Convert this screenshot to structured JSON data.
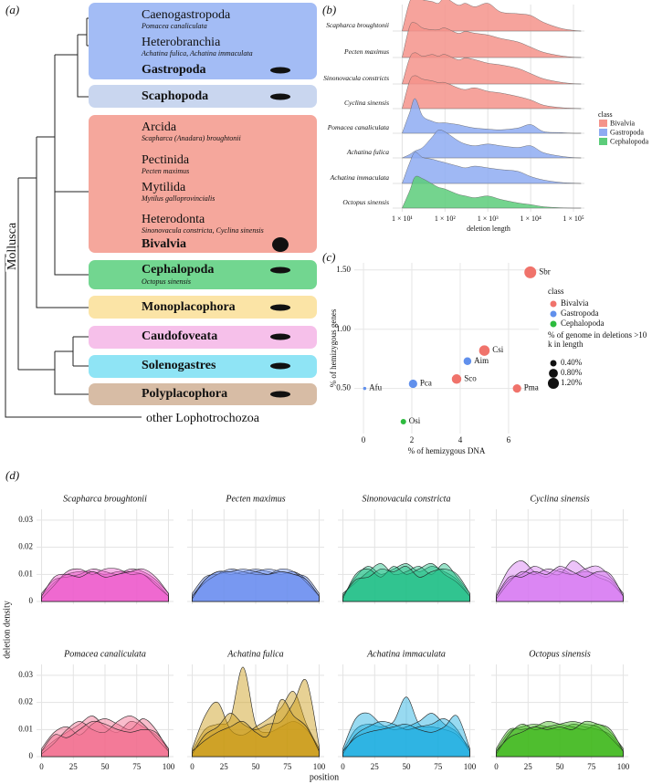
{
  "chart_data": [
    {
      "type": "tree",
      "label": "(a)",
      "root": "Mollusca",
      "outgroup": "other Lophotrochozoa",
      "groups": [
        {
          "name": "Gastropoda",
          "color": "#a3bcf5",
          "members": [
            {
              "name": "Caenogastropoda",
              "species": "Pomacea canaliculata"
            },
            {
              "name": "Heterobranchia",
              "species": "Achatina fulica, Achatina immaculata"
            }
          ]
        },
        {
          "name": "Scaphopoda",
          "color": "#c9d6ef"
        },
        {
          "name": "Bivalvia",
          "color": "#f5a79c",
          "members": [
            {
              "name": "Arcida",
              "species": "Scapharca (Anadara) broughtonii"
            },
            {
              "name": "Pectinida",
              "species": "Pecten maximus"
            },
            {
              "name": "Mytilida",
              "species": "Mytilus galloprovincialis"
            },
            {
              "name": "Heterodonta",
              "species": "Sinonovacula constricta, Cyclina sinensis"
            }
          ]
        },
        {
          "name": "Cephalopoda",
          "color": "#72d690",
          "species": "Octopus sinensis"
        },
        {
          "name": "Monoplacophora",
          "color": "#fbe4a6"
        },
        {
          "name": "Caudofoveata",
          "color": "#f6c0ea"
        },
        {
          "name": "Solenogastres",
          "color": "#8fe4f5"
        },
        {
          "name": "Polyplacophora",
          "color": "#d7bca5"
        }
      ]
    },
    {
      "type": "ridgeline",
      "label": "(b)",
      "x_label": "deletion length",
      "xscale": "log",
      "x": [
        10,
        15,
        20,
        30,
        50,
        70,
        100,
        200,
        300,
        500,
        1000,
        2000,
        5000,
        10000,
        20000,
        50000,
        100000,
        150000
      ],
      "xlim": [
        6,
        180000
      ],
      "xticks": [
        {
          "value": 10,
          "label": "1 × 10¹"
        },
        {
          "value": 100,
          "label": "1 × 10²"
        },
        {
          "value": 1000,
          "label": "1 × 10³"
        },
        {
          "value": 10000,
          "label": "1 × 10⁴"
        },
        {
          "value": 100000,
          "label": "1 × 10⁵"
        }
      ],
      "grid": true,
      "series": [
        {
          "name": "Scapharca broughtonii",
          "color": "#f4938b",
          "values": [
            0,
            0.85,
            1.0,
            0.9,
            0.85,
            0.8,
            0.95,
            0.75,
            0.8,
            0.7,
            0.8,
            0.55,
            0.5,
            0.45,
            0.25,
            0.08,
            0.02,
            0
          ]
        },
        {
          "name": "Pecten maximus",
          "color": "#f4938b",
          "values": [
            0,
            0.9,
            1.0,
            0.85,
            0.8,
            0.8,
            0.85,
            0.7,
            0.75,
            0.7,
            0.65,
            0.55,
            0.45,
            0.3,
            0.15,
            0.05,
            0.01,
            0
          ]
        },
        {
          "name": "Sinonovacula constricts",
          "color": "#f4938b",
          "values": [
            0,
            0.75,
            0.9,
            0.8,
            0.85,
            0.8,
            0.85,
            0.7,
            0.75,
            0.7,
            0.6,
            0.55,
            0.45,
            0.3,
            0.15,
            0.05,
            0.01,
            0
          ]
        },
        {
          "name": "Cyclina sinensis",
          "color": "#f4938b",
          "values": [
            0,
            0.8,
            0.95,
            0.85,
            0.8,
            0.75,
            0.75,
            0.6,
            0.55,
            0.6,
            0.5,
            0.45,
            0.35,
            0.25,
            0.1,
            0.03,
            0.01,
            0
          ]
        },
        {
          "name": "Pomacea canaliculata",
          "color": "#8eabf2",
          "values": [
            0,
            0.6,
            1.0,
            0.5,
            0.35,
            0.3,
            0.3,
            0.25,
            0.2,
            0.15,
            0.12,
            0.1,
            0.15,
            0.25,
            0.05,
            0.02,
            0,
            0
          ]
        },
        {
          "name": "Achatina fulica",
          "color": "#8eabf2",
          "values": [
            0,
            0.1,
            0.2,
            0.3,
            0.6,
            0.8,
            0.75,
            0.5,
            0.4,
            0.35,
            0.4,
            0.35,
            0.3,
            0.35,
            0.15,
            0.05,
            0.01,
            0
          ]
        },
        {
          "name": "Achatina immaculata",
          "color": "#8eabf2",
          "values": [
            0,
            0.6,
            0.9,
            0.75,
            0.7,
            0.65,
            0.6,
            0.5,
            0.45,
            0.5,
            0.45,
            0.4,
            0.35,
            0.2,
            0.1,
            0.03,
            0.01,
            0
          ]
        },
        {
          "name": "Octopus sinensis",
          "color": "#5ccc7a",
          "values": [
            0,
            0.5,
            0.9,
            0.85,
            0.7,
            0.6,
            0.55,
            0.4,
            0.35,
            0.3,
            0.35,
            0.25,
            0.15,
            0.1,
            0.04,
            0.01,
            0,
            0
          ]
        }
      ],
      "legend": {
        "title": "class",
        "items": [
          {
            "name": "Bivalvia",
            "color": "#f4938b"
          },
          {
            "name": "Gastropoda",
            "color": "#8eabf2"
          },
          {
            "name": "Cephalopoda",
            "color": "#5ccc7a"
          }
        ]
      }
    },
    {
      "type": "scatter",
      "label": "(c)",
      "x_label": "% of hemizygous DNA",
      "y_label": "% of hemizygous genes",
      "xlim": [
        -0.38,
        7.25
      ],
      "ylim": [
        0.12,
        1.56
      ],
      "xticks": [
        0,
        2,
        4,
        6
      ],
      "yticks": [
        {
          "value": 0.5,
          "label": "0.50"
        },
        {
          "value": 1.0,
          "label": "1.00"
        },
        {
          "value": 1.5,
          "label": "1.50"
        }
      ],
      "grid": true,
      "legend_title": "class",
      "series": [
        {
          "name": "Bivalvia",
          "color": "#f0736b",
          "labels": [
            "Sbr",
            "Csi",
            "Sco",
            "Pma"
          ],
          "x": [
            6.9,
            5.0,
            3.85,
            6.35
          ],
          "values": [
            1.48,
            0.82,
            0.58,
            0.5
          ],
          "sizes": [
            1.4,
            1.1,
            0.9,
            0.7
          ]
        },
        {
          "name": "Gastropoda",
          "color": "#6190ec",
          "labels": [
            "Aim",
            "Pca",
            "Afu"
          ],
          "x": [
            4.3,
            2.05,
            0.05
          ],
          "values": [
            0.73,
            0.54,
            0.5
          ],
          "sizes": [
            0.6,
            0.7,
            0.1
          ]
        },
        {
          "name": "Cephalopoda",
          "color": "#2dbb3e",
          "labels": [
            "Osi"
          ],
          "x": [
            1.65
          ],
          "values": [
            0.22
          ],
          "sizes": [
            0.3
          ]
        }
      ],
      "size_legend": {
        "title": "% of genome in deletions >10 k in length",
        "items": [
          {
            "value": 0.4,
            "label": "0.40%"
          },
          {
            "value": 0.8,
            "label": "0.80%"
          },
          {
            "value": 1.2,
            "label": "1.20%"
          }
        ]
      }
    },
    {
      "type": "density",
      "label": "(d)",
      "x_label": "position",
      "y_label": "deletion density",
      "x": [
        0,
        10,
        20,
        30,
        40,
        50,
        60,
        70,
        80,
        90,
        100
      ],
      "xlim": [
        -4,
        104
      ],
      "ylim": [
        -0.001,
        0.034
      ],
      "xticks": [
        0,
        25,
        50,
        75,
        100
      ],
      "yticks": [
        0,
        0.01,
        0.02,
        0.03
      ],
      "grid": true,
      "panels": [
        {
          "title": "Scapharca broughtonii",
          "color": "#ee5ccb",
          "curves": [
            [
              0.002,
              0.007,
              0.01,
              0.011,
              0.011,
              0.01,
              0.011,
              0.011,
              0.01,
              0.007,
              0.002
            ],
            [
              0.003,
              0.008,
              0.009,
              0.01,
              0.012,
              0.011,
              0.01,
              0.012,
              0.011,
              0.008,
              0.003
            ],
            [
              0.001,
              0.006,
              0.011,
              0.012,
              0.01,
              0.012,
              0.012,
              0.01,
              0.01,
              0.006,
              0.002
            ],
            [
              0.002,
              0.009,
              0.01,
              0.009,
              0.011,
              0.009,
              0.01,
              0.011,
              0.012,
              0.009,
              0.003
            ]
          ]
        },
        {
          "title": "Pecten maximus",
          "color": "#6b8ff0",
          "curves": [
            [
              0.002,
              0.008,
              0.011,
              0.01,
              0.011,
              0.012,
              0.011,
              0.01,
              0.011,
              0.008,
              0.002
            ],
            [
              0.003,
              0.009,
              0.01,
              0.011,
              0.01,
              0.011,
              0.012,
              0.011,
              0.01,
              0.009,
              0.003
            ],
            [
              0.002,
              0.007,
              0.01,
              0.012,
              0.011,
              0.01,
              0.01,
              0.012,
              0.011,
              0.007,
              0.002
            ],
            [
              0.001,
              0.008,
              0.011,
              0.011,
              0.012,
              0.011,
              0.01,
              0.011,
              0.01,
              0.008,
              0.002
            ]
          ]
        },
        {
          "title": "Sinonovacula constricta",
          "color": "#1dbf86",
          "curves": [
            [
              0.002,
              0.009,
              0.013,
              0.01,
              0.012,
              0.014,
              0.011,
              0.013,
              0.011,
              0.008,
              0.002
            ],
            [
              0.003,
              0.007,
              0.011,
              0.014,
              0.01,
              0.011,
              0.013,
              0.01,
              0.014,
              0.009,
              0.003
            ],
            [
              0.001,
              0.01,
              0.012,
              0.009,
              0.013,
              0.01,
              0.012,
              0.014,
              0.01,
              0.007,
              0.002
            ],
            [
              0.002,
              0.008,
              0.009,
              0.012,
              0.011,
              0.013,
              0.009,
              0.011,
              0.012,
              0.01,
              0.003
            ]
          ]
        },
        {
          "title": "Cyclina sinensis",
          "color": "#d77bf2",
          "curves": [
            [
              0.003,
              0.012,
              0.015,
              0.011,
              0.009,
              0.012,
              0.01,
              0.011,
              0.01,
              0.008,
              0.002
            ],
            [
              0.002,
              0.008,
              0.01,
              0.013,
              0.011,
              0.01,
              0.015,
              0.012,
              0.009,
              0.007,
              0.002
            ],
            [
              0.001,
              0.007,
              0.011,
              0.01,
              0.012,
              0.011,
              0.01,
              0.012,
              0.013,
              0.009,
              0.003
            ],
            [
              0.002,
              0.009,
              0.009,
              0.011,
              0.01,
              0.013,
              0.011,
              0.009,
              0.011,
              0.01,
              0.002
            ]
          ]
        },
        {
          "title": "Pomacea canaliculata",
          "color": "#f26d8d",
          "curves": [
            [
              0.002,
              0.006,
              0.009,
              0.012,
              0.015,
              0.011,
              0.009,
              0.013,
              0.011,
              0.008,
              0.003
            ],
            [
              0.003,
              0.009,
              0.011,
              0.008,
              0.012,
              0.014,
              0.012,
              0.01,
              0.014,
              0.01,
              0.002
            ],
            [
              0.001,
              0.005,
              0.01,
              0.013,
              0.01,
              0.009,
              0.013,
              0.015,
              0.012,
              0.007,
              0.002
            ],
            [
              0.002,
              0.008,
              0.007,
              0.01,
              0.013,
              0.012,
              0.01,
              0.009,
              0.01,
              0.009,
              0.003
            ]
          ]
        },
        {
          "title": "Achatina fulica",
          "color": "#c99a12",
          "curves": [
            [
              0.002,
              0.01,
              0.012,
              0.014,
              0.033,
              0.012,
              0.009,
              0.011,
              0.013,
              0.01,
              0.003
            ],
            [
              0.003,
              0.015,
              0.02,
              0.01,
              0.008,
              0.011,
              0.014,
              0.018,
              0.024,
              0.012,
              0.003
            ],
            [
              0.001,
              0.008,
              0.011,
              0.016,
              0.012,
              0.01,
              0.012,
              0.013,
              0.02,
              0.028,
              0.004
            ],
            [
              0.002,
              0.006,
              0.009,
              0.011,
              0.013,
              0.009,
              0.008,
              0.021,
              0.015,
              0.011,
              0.002
            ]
          ]
        },
        {
          "title": "Achatina immaculata",
          "color": "#1aaee0",
          "curves": [
            [
              0.002,
              0.01,
              0.012,
              0.011,
              0.013,
              0.022,
              0.012,
              0.011,
              0.01,
              0.008,
              0.002
            ],
            [
              0.003,
              0.014,
              0.016,
              0.012,
              0.01,
              0.011,
              0.013,
              0.016,
              0.012,
              0.009,
              0.003
            ],
            [
              0.001,
              0.008,
              0.011,
              0.013,
              0.012,
              0.01,
              0.011,
              0.012,
              0.014,
              0.01,
              0.002
            ],
            [
              0.002,
              0.007,
              0.009,
              0.01,
              0.011,
              0.012,
              0.01,
              0.009,
              0.011,
              0.015,
              0.003
            ]
          ]
        },
        {
          "title": "Octopus sinensis",
          "color": "#3db81a",
          "curves": [
            [
              0.002,
              0.009,
              0.011,
              0.012,
              0.011,
              0.01,
              0.012,
              0.011,
              0.01,
              0.008,
              0.002
            ],
            [
              0.003,
              0.01,
              0.01,
              0.011,
              0.013,
              0.012,
              0.011,
              0.01,
              0.012,
              0.009,
              0.003
            ],
            [
              0.001,
              0.008,
              0.012,
              0.01,
              0.011,
              0.012,
              0.013,
              0.012,
              0.011,
              0.007,
              0.002
            ],
            [
              0.002,
              0.007,
              0.009,
              0.011,
              0.01,
              0.011,
              0.01,
              0.013,
              0.012,
              0.01,
              0.002
            ]
          ]
        }
      ]
    }
  ]
}
